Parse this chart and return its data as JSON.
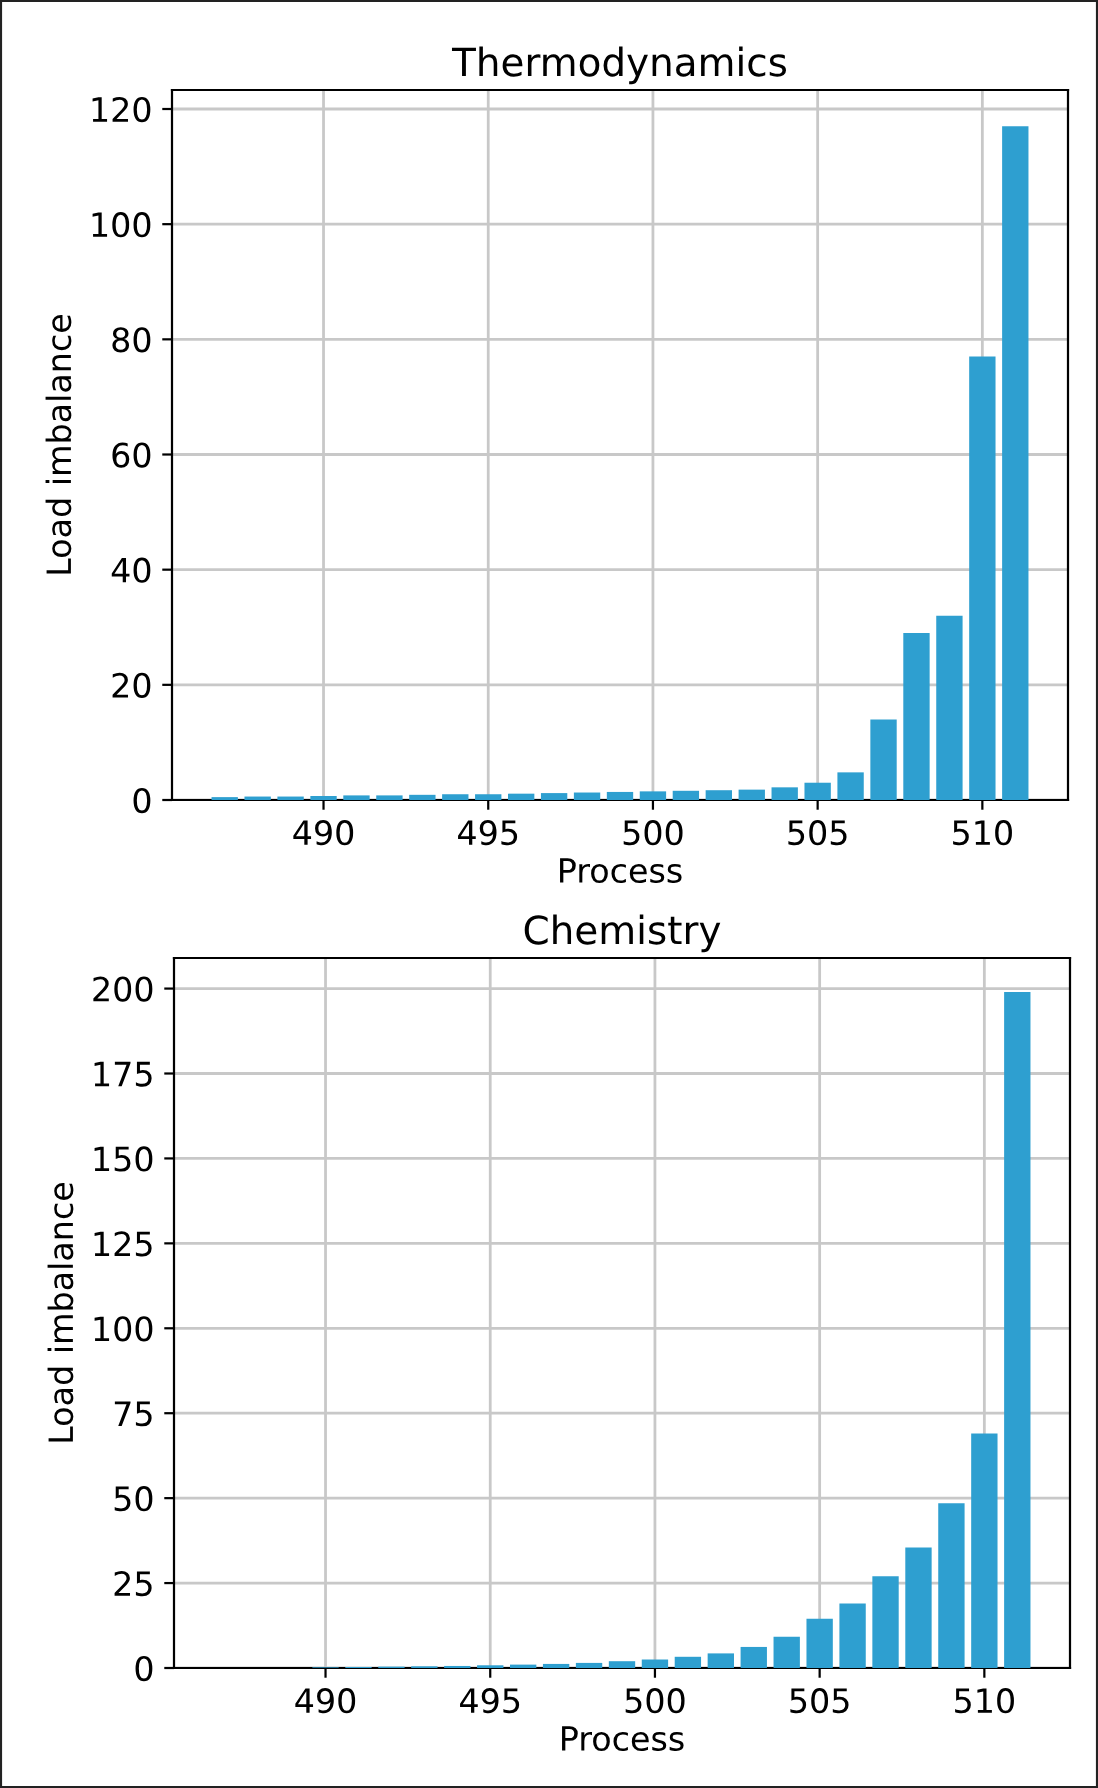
{
  "chart_data": [
    {
      "type": "bar",
      "title": "Thermodynamics",
      "xlabel": "Process",
      "ylabel": "Load imbalance",
      "x": [
        487,
        488,
        489,
        490,
        491,
        492,
        493,
        494,
        495,
        496,
        497,
        498,
        499,
        500,
        501,
        502,
        503,
        504,
        505,
        506,
        507,
        508,
        509,
        510,
        511
      ],
      "values": [
        0.5,
        0.6,
        0.6,
        0.7,
        0.8,
        0.8,
        0.9,
        1.0,
        1.0,
        1.1,
        1.2,
        1.3,
        1.4,
        1.5,
        1.6,
        1.7,
        1.8,
        2.2,
        3.0,
        4.8,
        14,
        29,
        32,
        77,
        117
      ],
      "color": "#2e9fd0",
      "xlim": [
        485.4,
        512.6
      ],
      "xticks": [
        490,
        495,
        500,
        505,
        510
      ],
      "ylim": [
        0,
        123.3
      ],
      "yticks": [
        0,
        20,
        40,
        60,
        80,
        100,
        120
      ],
      "grid": true
    },
    {
      "type": "bar",
      "title": "Chemistry",
      "xlabel": "Process",
      "ylabel": "Load imbalance",
      "x": [
        490,
        491,
        492,
        493,
        494,
        495,
        496,
        497,
        498,
        499,
        500,
        501,
        502,
        503,
        504,
        505,
        506,
        507,
        508,
        509,
        510,
        511
      ],
      "values": [
        0.2,
        0.3,
        0.4,
        0.5,
        0.6,
        0.8,
        1.0,
        1.2,
        1.5,
        2,
        2.5,
        3.3,
        4.3,
        6.2,
        9.2,
        14.5,
        19,
        27,
        35.5,
        48.5,
        69,
        199
      ],
      "color": "#2e9fd0",
      "xlim": [
        485.4,
        512.6
      ],
      "xticks": [
        490,
        495,
        500,
        505,
        510
      ],
      "ylim": [
        0,
        209
      ],
      "yticks": [
        0,
        25,
        50,
        75,
        100,
        125,
        150,
        175,
        200
      ],
      "grid": true
    }
  ]
}
